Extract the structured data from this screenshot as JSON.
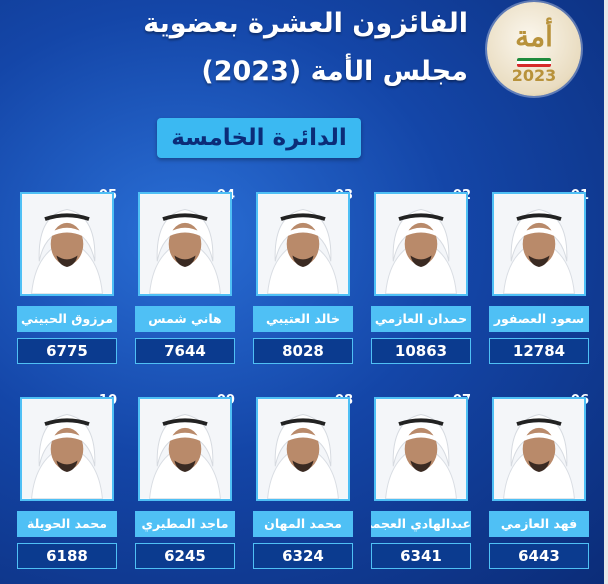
{
  "header": {
    "title_line1": "الفائزون العشرة بعضوية",
    "title_line2": "مجلس الأمة (2023)",
    "district": "الدائرة الخامسة"
  },
  "logo": {
    "text": "أمة",
    "year": "2023"
  },
  "candidates": [
    {
      "num": "01",
      "name": "سعود العصفور",
      "votes": "12784"
    },
    {
      "num": "02",
      "name": "حمدان العازمي",
      "votes": "10863"
    },
    {
      "num": "03",
      "name": "خالد العتيبي",
      "votes": "8028"
    },
    {
      "num": "04",
      "name": "هاني شمس",
      "votes": "7644"
    },
    {
      "num": "05",
      "name": "مرزوق الحبيني",
      "votes": "6775"
    },
    {
      "num": "06",
      "name": "فهد العازمي",
      "votes": "6443"
    },
    {
      "num": "07",
      "name": "عبدالهادي العجمي",
      "votes": "6341"
    },
    {
      "num": "08",
      "name": "محمد المهان",
      "votes": "6324"
    },
    {
      "num": "09",
      "name": "ماجد المطيري",
      "votes": "6245"
    },
    {
      "num": "10",
      "name": "محمد الحويلة",
      "votes": "6188"
    }
  ]
}
